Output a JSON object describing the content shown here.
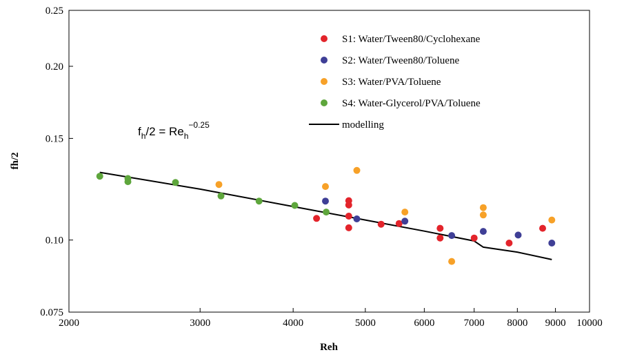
{
  "chart_data": {
    "type": "scatter",
    "x_scale": "log",
    "y_scale": "log",
    "xlim": [
      2000,
      10000
    ],
    "ylim": [
      0.075,
      0.25
    ],
    "xlabel": "Reh",
    "ylabel": "fh/2",
    "x_ticks": [
      2000,
      3000,
      4000,
      5000,
      6000,
      7000,
      8000,
      9000,
      10000
    ],
    "x_tick_labels": [
      "2000",
      "3000",
      "4000",
      "5000",
      "6000",
      "7000",
      "8000",
      "9000",
      "10000"
    ],
    "y_ticks": [
      0.075,
      0.1,
      0.15,
      0.2,
      0.25
    ],
    "y_tick_labels": [
      "0.075",
      "0.10",
      "0.15",
      "0.20",
      "0.25"
    ],
    "grid": false,
    "legend_position": "top-right",
    "annotation": {
      "base": "f",
      "base_sub": "h",
      "middle": "/2 = Re",
      "middle_sub": "h",
      "exponent": "−0.25"
    },
    "series": [
      {
        "name": "S1: Water/Tween80/Cyclohexane",
        "color": "#e3242b",
        "points": [
          [
            4300,
            0.109
          ],
          [
            4750,
            0.117
          ],
          [
            4750,
            0.115
          ],
          [
            4750,
            0.11
          ],
          [
            4750,
            0.105
          ],
          [
            5250,
            0.1065
          ],
          [
            5550,
            0.1068
          ],
          [
            6300,
            0.1048
          ],
          [
            6300,
            0.1008
          ],
          [
            7000,
            0.1008
          ],
          [
            7800,
            0.0988
          ],
          [
            8650,
            0.1048
          ]
        ]
      },
      {
        "name": "S2: Water/Tween80/Toluene",
        "color": "#3f3f96",
        "points": [
          [
            4420,
            0.1168
          ],
          [
            4870,
            0.1088
          ],
          [
            5650,
            0.1078
          ],
          [
            6530,
            0.1018
          ],
          [
            7200,
            0.1035
          ],
          [
            8020,
            0.102
          ],
          [
            8900,
            0.0988
          ]
        ]
      },
      {
        "name": "S3: Water/PVA/Toluene",
        "color": "#f7a128",
        "points": [
          [
            3180,
            0.1248
          ],
          [
            4420,
            0.1238
          ],
          [
            4870,
            0.132
          ],
          [
            5650,
            0.1118
          ],
          [
            6530,
            0.0918
          ],
          [
            7200,
            0.1138
          ],
          [
            7200,
            0.1105
          ],
          [
            8900,
            0.1083
          ]
        ]
      },
      {
        "name": "S4: Water-Glycerol/PVA/Toluene",
        "color": "#5ea63c",
        "points": [
          [
            2200,
            0.129
          ],
          [
            2400,
            0.1278
          ],
          [
            2400,
            0.1262
          ],
          [
            2780,
            0.1258
          ],
          [
            3200,
            0.1192
          ],
          [
            3600,
            0.1168
          ],
          [
            4020,
            0.1148
          ],
          [
            4430,
            0.1118
          ]
        ]
      },
      {
        "name": "modelling",
        "color": "#000000",
        "line": [
          [
            2200,
            0.131
          ],
          [
            3000,
            0.1225
          ],
          [
            4000,
            0.1143
          ],
          [
            5000,
            0.1083
          ],
          [
            6000,
            0.1036
          ],
          [
            7000,
            0.0996
          ],
          [
            7200,
            0.0972
          ],
          [
            8000,
            0.0953
          ],
          [
            8900,
            0.0925
          ]
        ]
      }
    ]
  }
}
